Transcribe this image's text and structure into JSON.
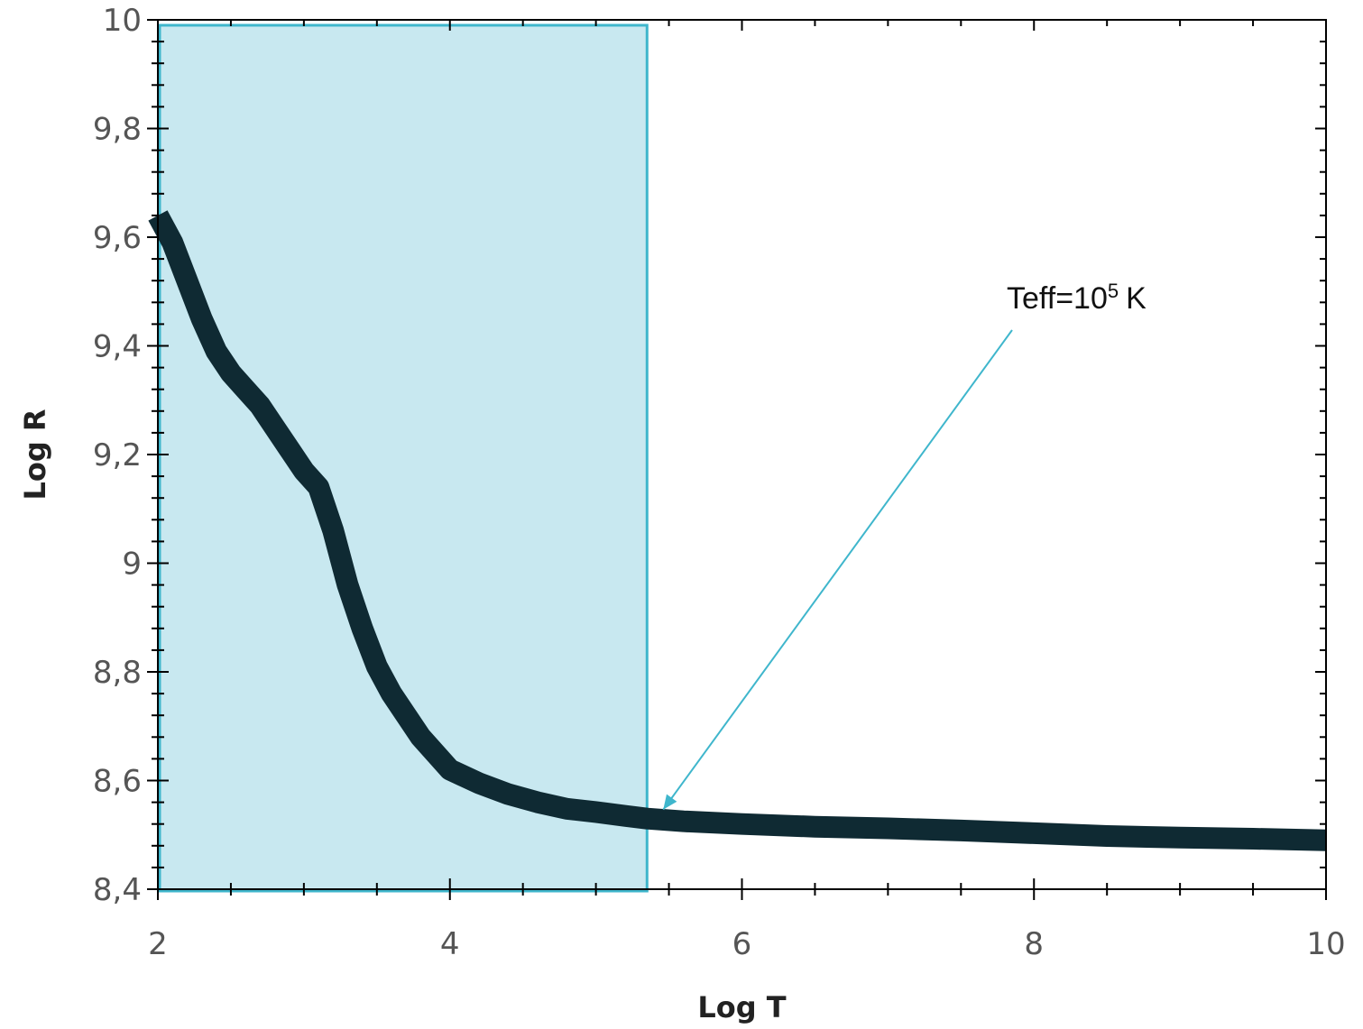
{
  "chart_data": {
    "type": "line",
    "xlabel": "Log T",
    "ylabel": "Log R",
    "xlim": [
      2,
      10
    ],
    "ylim": [
      8.4,
      10
    ],
    "x_ticks": [
      {
        "value": 2,
        "label": "2"
      },
      {
        "value": 4,
        "label": "4"
      },
      {
        "value": 6,
        "label": "6"
      },
      {
        "value": 8,
        "label": "8"
      },
      {
        "value": 10,
        "label": "10"
      }
    ],
    "y_ticks": [
      {
        "value": 8.4,
        "label": "8,4"
      },
      {
        "value": 8.6,
        "label": "8,6"
      },
      {
        "value": 8.8,
        "label": "8,8"
      },
      {
        "value": 9.0,
        "label": "9"
      },
      {
        "value": 9.2,
        "label": "9,2"
      },
      {
        "value": 9.4,
        "label": "9,4"
      },
      {
        "value": 9.6,
        "label": "9,6"
      },
      {
        "value": 9.8,
        "label": "9,8"
      },
      {
        "value": 10,
        "label": "10"
      }
    ],
    "series": [
      {
        "color": "#0f2a33",
        "x": [
          2.0,
          2.1,
          2.2,
          2.3,
          2.4,
          2.5,
          2.6,
          2.7,
          2.8,
          2.9,
          3.0,
          3.1,
          3.2,
          3.3,
          3.4,
          3.5,
          3.6,
          3.7,
          3.8,
          3.9,
          4.0,
          4.2,
          4.4,
          4.6,
          4.8,
          5.0,
          5.2,
          5.35,
          5.6,
          6.0,
          6.5,
          7.0,
          7.5,
          8.0,
          8.5,
          9.0,
          9.5,
          10.0
        ],
        "y": [
          9.64,
          9.59,
          9.52,
          9.45,
          9.39,
          9.35,
          9.32,
          9.29,
          9.25,
          9.21,
          9.17,
          9.14,
          9.06,
          8.96,
          8.88,
          8.81,
          8.76,
          8.72,
          8.68,
          8.65,
          8.62,
          8.595,
          8.575,
          8.56,
          8.548,
          8.542,
          8.535,
          8.53,
          8.525,
          8.52,
          8.515,
          8.512,
          8.508,
          8.503,
          8.498,
          8.495,
          8.493,
          8.49
        ]
      }
    ],
    "highlight_region": {
      "x_start": 2,
      "x_end": 5.35,
      "color": "#c8e8f0",
      "border": "#3fb6cc"
    },
    "annotation": {
      "text": "Teff=10",
      "superscript": "5",
      "unit": "K",
      "target_x": 5.35,
      "target_y": 8.53,
      "color": "#3fb6cc"
    }
  }
}
